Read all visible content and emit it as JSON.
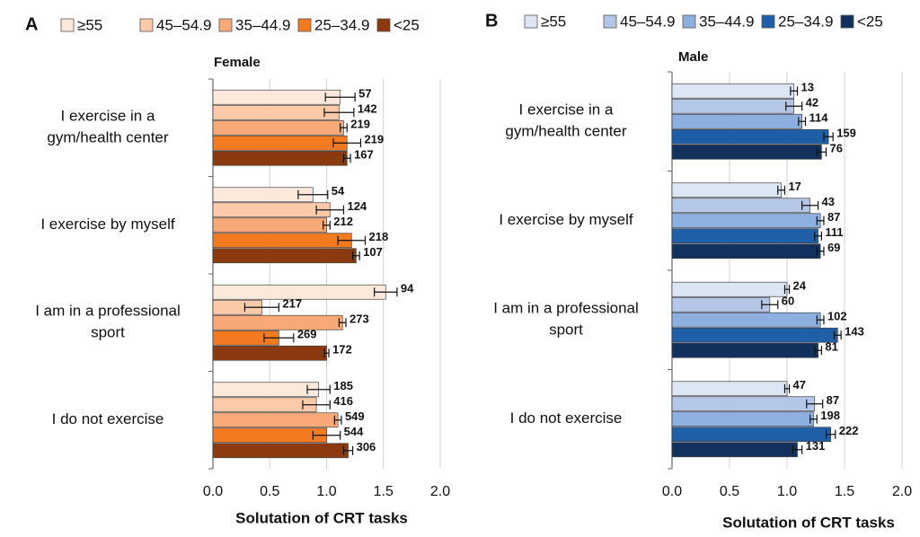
{
  "chart_data": [
    {
      "type": "bar",
      "orientation": "horizontal",
      "panel": "A",
      "title": "Female",
      "xlabel": "Solutation of CRT tasks",
      "categories": [
        [
          "I exercise in a",
          "gym/health center"
        ],
        [
          "I exercise by myself"
        ],
        [
          "I am in a professional",
          "sport"
        ],
        [
          "I do not exercise"
        ]
      ],
      "xlim": [
        0,
        2
      ],
      "xticks": [
        {
          "value": 0,
          "label": "0.0"
        },
        0.5,
        {
          "value": 1,
          "label": "1.0"
        },
        1.5,
        {
          "value": 2,
          "label": "2.0"
        }
      ],
      "grid": true,
      "series": [
        {
          "name": "≥55",
          "color": "#fde9dc",
          "values": [
            1.12,
            0.88,
            1.52,
            0.93
          ],
          "errors": [
            0.13,
            0.13,
            0.1,
            0.1
          ],
          "counts": [
            "57",
            "54",
            "94",
            "185"
          ]
        },
        {
          "name": "45–54.9",
          "color": "#fcc9a9",
          "values": [
            1.11,
            1.03,
            0.43,
            0.91
          ],
          "errors": [
            0.13,
            0.12,
            0.15,
            0.12
          ],
          "counts": [
            "142",
            "124",
            "217",
            "416"
          ]
        },
        {
          "name": "35–44.9",
          "color": "#f8a977",
          "values": [
            1.15,
            1.0,
            1.14,
            1.1
          ],
          "errors": [
            0.03,
            0.03,
            0.03,
            0.03
          ],
          "counts": [
            "219",
            "212",
            "273",
            "549"
          ]
        },
        {
          "name": "25–34.9",
          "color": "#f47a22",
          "values": [
            1.18,
            1.22,
            0.58,
            1.0
          ],
          "errors": [
            0.12,
            0.12,
            0.13,
            0.12
          ],
          "counts": [
            "219",
            "218",
            "269",
            "544"
          ]
        },
        {
          "name": "<25",
          "color": "#8b3a0f",
          "values": [
            1.18,
            1.26,
            1.0,
            1.19
          ],
          "errors": [
            0.03,
            0.03,
            0.02,
            0.04
          ],
          "counts": [
            "167",
            "107",
            "172",
            "306"
          ]
        }
      ]
    },
    {
      "type": "bar",
      "orientation": "horizontal",
      "panel": "B",
      "title": "Male",
      "xlabel": "Solutation of CRT tasks",
      "categories": [
        [
          "I exercise in a",
          "gym/health center"
        ],
        [
          "I exercise by myself"
        ],
        [
          "I am in a professional",
          "sport"
        ],
        [
          "I do not exercise"
        ]
      ],
      "xlim": [
        0,
        2
      ],
      "xticks": [
        {
          "value": 0,
          "label": "0.0"
        },
        0.5,
        {
          "value": 1,
          "label": "1.0"
        },
        1.5,
        {
          "value": 2,
          "label": "2.0"
        }
      ],
      "grid": true,
      "series": [
        {
          "name": "≥55",
          "color": "#dce6f4",
          "values": [
            1.06,
            0.95,
            1.0,
            1.0
          ],
          "errors": [
            0.03,
            0.03,
            0.02,
            0.02
          ],
          "counts": [
            "13",
            "17",
            "24",
            "47"
          ]
        },
        {
          "name": "45–54.9",
          "color": "#b4c7e7",
          "values": [
            1.06,
            1.2,
            0.85,
            1.24
          ],
          "errors": [
            0.07,
            0.07,
            0.07,
            0.07
          ],
          "counts": [
            "42",
            "43",
            "60",
            "87"
          ]
        },
        {
          "name": "35–44.9",
          "color": "#8eb0e0",
          "values": [
            1.13,
            1.29,
            1.29,
            1.23
          ],
          "errors": [
            0.03,
            0.03,
            0.03,
            0.03
          ],
          "counts": [
            "114",
            "87",
            "102",
            "198"
          ]
        },
        {
          "name": "25–34.9",
          "color": "#1f5fa8",
          "values": [
            1.36,
            1.27,
            1.44,
            1.38
          ],
          "errors": [
            0.04,
            0.03,
            0.03,
            0.04
          ],
          "counts": [
            "159",
            "111",
            "143",
            "222"
          ]
        },
        {
          "name": "<25",
          "color": "#12315c",
          "values": [
            1.3,
            1.29,
            1.27,
            1.09
          ],
          "errors": [
            0.04,
            0.03,
            0.03,
            0.04
          ],
          "counts": [
            "76",
            "69",
            "81",
            "131"
          ]
        }
      ]
    }
  ]
}
